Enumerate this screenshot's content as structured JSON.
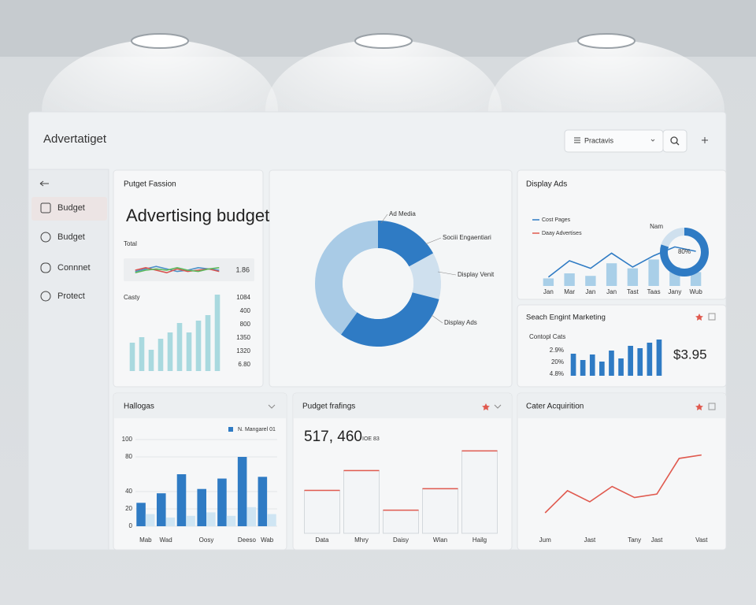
{
  "header": {
    "title": "Advertatiget",
    "search": "Practavis"
  },
  "sidebar": {
    "items": [
      "Budget",
      "Budget",
      "Connnet",
      "Protect"
    ]
  },
  "chart_data": [
    {
      "type": "bar",
      "title": "Putget Fassion",
      "subtitle": "Advertising budget",
      "label": "Total",
      "spark_value": 1.86,
      "sparklines": [
        {
          "color": "#4a90c8",
          "values": [
            4,
            6,
            8,
            6,
            4,
            5,
            7,
            6,
            5
          ]
        },
        {
          "color": "#d9534f",
          "values": [
            5,
            7,
            5,
            3,
            6,
            4,
            5,
            6,
            4
          ]
        },
        {
          "color": "#5cb85c",
          "values": [
            3,
            5,
            6,
            5,
            7,
            5,
            4,
            6,
            7
          ]
        }
      ],
      "axis_label": "Casty",
      "values": [
        36,
        43,
        27,
        41,
        49,
        61,
        49,
        64,
        71,
        97
      ],
      "ylim": [
        0,
        100
      ],
      "color": "#a9d9df",
      "side_labels": [
        "1084",
        "400",
        "800",
        "1350",
        "1320",
        "6.80"
      ]
    },
    {
      "type": "pie",
      "hole": true,
      "categories": [
        "Ad Media",
        "Sociii Engaentiari",
        "Display Venit",
        "Display Ads"
      ],
      "values": [
        17,
        12,
        31,
        40
      ],
      "colors": [
        "#2f7bc4",
        "#cfe0ee",
        "#2f7bc4",
        "#a9cbe6"
      ]
    },
    {
      "type": "combo",
      "title": "Display Ads",
      "note": "Nam",
      "categories": [
        "Jan",
        "Mar",
        "Jan",
        "Jan",
        "Tast",
        "Taas",
        "Jany",
        "Wub"
      ],
      "series": [
        {
          "name": "Cost Pages",
          "color": "#2f7bc4",
          "kind": "line",
          "values": [
            14,
            40,
            28,
            52,
            30,
            48,
            62,
            55
          ]
        },
        {
          "name": "Daay Advertises",
          "color": "#e05a4f",
          "kind": "bar",
          "bar_color": "#a9cfe8",
          "values": [
            12,
            20,
            16,
            36,
            28,
            42,
            30,
            22
          ]
        }
      ],
      "ylim": [
        0,
        100
      ],
      "gauge": {
        "value": 80,
        "label": "80%",
        "color": "#2f7bc4"
      }
    },
    {
      "type": "bar",
      "title": "Seach Engint Marketing",
      "subtitle": "Contopl Cats",
      "side_labels": [
        "2.9%",
        "20%",
        "4.8%"
      ],
      "values": [
        28,
        20,
        27,
        18,
        32,
        22,
        38,
        35,
        42,
        46
      ],
      "ylim": [
        0,
        50
      ],
      "color": "#2f7bc4",
      "total": "$3.95"
    },
    {
      "type": "bar",
      "title": "Hallogas",
      "categories": [
        "Mab",
        "Wad",
        null,
        "Oosy",
        null,
        "Deeso",
        "Wab"
      ],
      "series": [
        {
          "name": "N. Mangarel 01",
          "color": "#2f7bc4",
          "values": [
            27,
            38,
            60,
            43,
            55,
            80,
            57
          ]
        },
        {
          "color": "#cfe5f3",
          "values": [
            14,
            10,
            12,
            16,
            12,
            22,
            14
          ]
        }
      ],
      "ylim": [
        0,
        100
      ],
      "yticks": [
        0,
        20,
        40,
        80,
        100
      ],
      "grid": true,
      "legend": "top-right"
    },
    {
      "type": "bar",
      "title": "Pudget frafings",
      "headline": "517, 460",
      "note": "IOE 83",
      "categories": [
        "Data",
        "Mhry",
        "Daisy",
        "Wlan",
        "Hailg"
      ],
      "values": [
        50,
        73,
        27,
        52,
        96
      ],
      "ylim": [
        0,
        100
      ],
      "color": "#e05a4f",
      "style": "outline"
    },
    {
      "type": "line",
      "title": "Cater Acquirition",
      "categories": [
        "Jum",
        null,
        "Jast",
        null,
        "Tany",
        "Jast",
        null,
        "Vast"
      ],
      "values": [
        25,
        51,
        38,
        56,
        43,
        47,
        89,
        93
      ],
      "ylim": [
        0,
        100
      ],
      "color": "#e05a4f"
    }
  ]
}
